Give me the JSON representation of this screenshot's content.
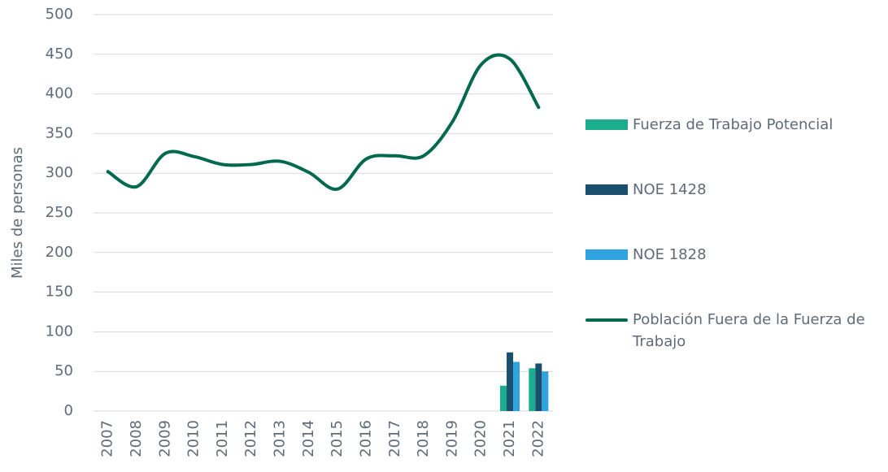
{
  "chart_data": {
    "type": "bar_line",
    "y_axis_label": "Miles de personas",
    "categories": [
      "2007",
      "2008",
      "2009",
      "2010",
      "2011",
      "2012",
      "2013",
      "2014",
      "2015",
      "2016",
      "2017",
      "2018",
      "2019",
      "2020",
      "2021",
      "2022"
    ],
    "series": [
      {
        "name": "Fuerza de Trabajo Potencial",
        "type": "bar",
        "color": "#1aae8f",
        "values": [
          null,
          null,
          null,
          null,
          null,
          null,
          null,
          null,
          null,
          null,
          null,
          null,
          null,
          null,
          32,
          54
        ]
      },
      {
        "name": "NOE 1428",
        "type": "bar",
        "color": "#1a4f6e",
        "values": [
          null,
          null,
          null,
          null,
          null,
          null,
          null,
          null,
          null,
          null,
          null,
          null,
          null,
          null,
          74,
          60
        ]
      },
      {
        "name": "NOE 1828",
        "type": "bar",
        "color": "#2ea3e0",
        "values": [
          null,
          null,
          null,
          null,
          null,
          null,
          null,
          null,
          null,
          null,
          null,
          null,
          null,
          null,
          62,
          50
        ]
      },
      {
        "name": "Población Fuera de la Fuerza de Trabajo",
        "type": "line",
        "color": "#00694e",
        "values": [
          302,
          283,
          325,
          321,
          311,
          311,
          315,
          301,
          280,
          318,
          322,
          322,
          365,
          437,
          444,
          383
        ]
      }
    ],
    "ylim": [
      0,
      500
    ],
    "yticks": [
      0,
      50,
      100,
      150,
      200,
      250,
      300,
      350,
      400,
      450,
      500
    ],
    "grid": true,
    "legend": "right"
  }
}
